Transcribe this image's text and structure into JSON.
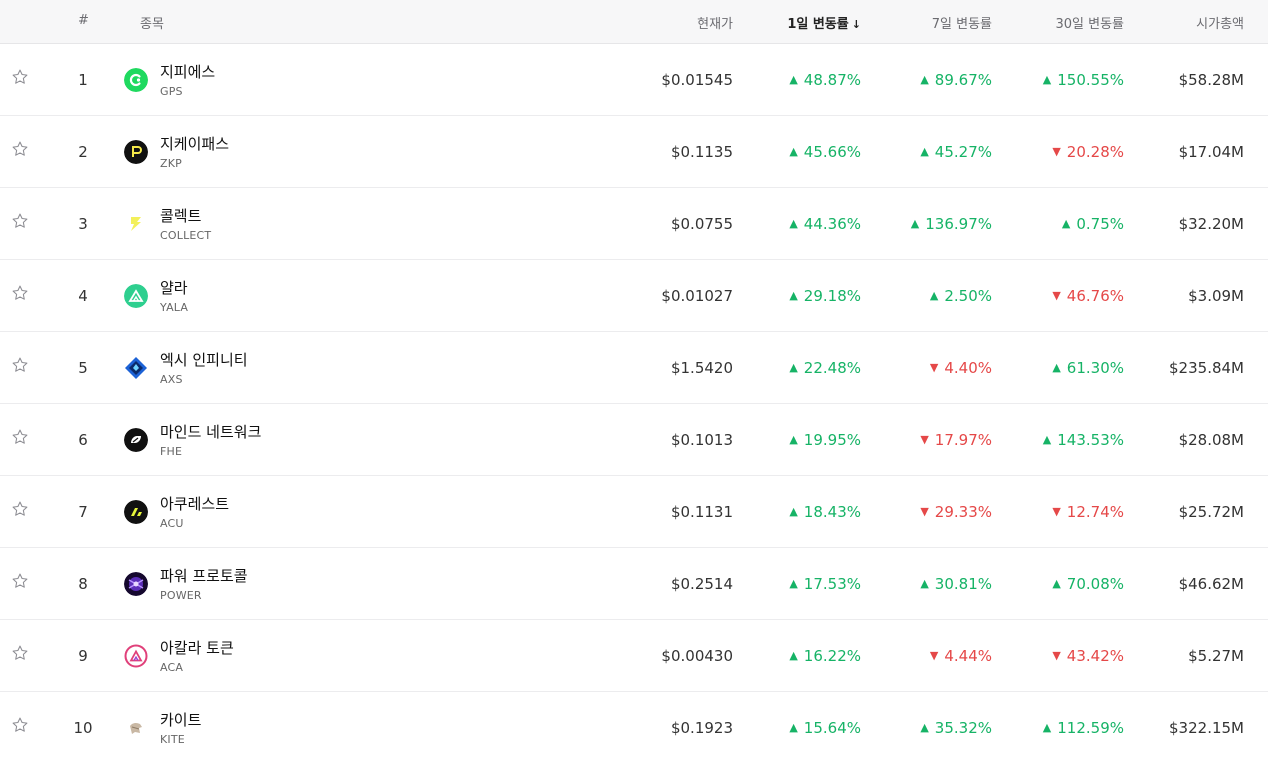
{
  "header": {
    "rank": "#",
    "name": "종목",
    "price": "현재가",
    "change_1d": "1일 변동률",
    "sort_indicator": "↓",
    "change_7d": "7일 변동률",
    "change_30d": "30일 변동률",
    "market_cap": "시가총액"
  },
  "colors": {
    "up": "#16b366",
    "down": "#e54848"
  },
  "rows": [
    {
      "rank": "1",
      "name": "지피에스",
      "symbol": "GPS",
      "price": "$0.01545",
      "d1": "48.87%",
      "d1_dir": "up",
      "d7": "89.67%",
      "d7_dir": "up",
      "d30": "150.55%",
      "d30_dir": "up",
      "cap": "$58.28M",
      "logo_icon": "gps-logo-icon",
      "logo_color": "#1fd95f"
    },
    {
      "rank": "2",
      "name": "지케이패스",
      "symbol": "ZKP",
      "price": "$0.1135",
      "d1": "45.66%",
      "d1_dir": "up",
      "d7": "45.27%",
      "d7_dir": "up",
      "d30": "20.28%",
      "d30_dir": "down",
      "cap": "$17.04M",
      "logo_icon": "zkp-logo-icon",
      "logo_color": "#111111"
    },
    {
      "rank": "3",
      "name": "콜렉트",
      "symbol": "COLLECT",
      "price": "$0.0755",
      "d1": "44.36%",
      "d1_dir": "up",
      "d7": "136.97%",
      "d7_dir": "up",
      "d30": "0.75%",
      "d30_dir": "up",
      "cap": "$32.20M",
      "logo_icon": "collect-logo-icon",
      "logo_color": "#f3f05a"
    },
    {
      "rank": "4",
      "name": "얄라",
      "symbol": "YALA",
      "price": "$0.01027",
      "d1": "29.18%",
      "d1_dir": "up",
      "d7": "2.50%",
      "d7_dir": "up",
      "d30": "46.76%",
      "d30_dir": "down",
      "cap": "$3.09M",
      "logo_icon": "yala-logo-icon",
      "logo_color": "#2ecf8f"
    },
    {
      "rank": "5",
      "name": "엑시 인피니티",
      "symbol": "AXS",
      "price": "$1.5420",
      "d1": "22.48%",
      "d1_dir": "up",
      "d7": "4.40%",
      "d7_dir": "down",
      "d30": "61.30%",
      "d30_dir": "up",
      "cap": "$235.84M",
      "logo_icon": "axs-logo-icon",
      "logo_color": "#1c62d6"
    },
    {
      "rank": "6",
      "name": "마인드 네트워크",
      "symbol": "FHE",
      "price": "$0.1013",
      "d1": "19.95%",
      "d1_dir": "up",
      "d7": "17.97%",
      "d7_dir": "down",
      "d30": "143.53%",
      "d30_dir": "up",
      "cap": "$28.08M",
      "logo_icon": "fhe-logo-icon",
      "logo_color": "#111111"
    },
    {
      "rank": "7",
      "name": "아쿠레스트",
      "symbol": "ACU",
      "price": "$0.1131",
      "d1": "18.43%",
      "d1_dir": "up",
      "d7": "29.33%",
      "d7_dir": "down",
      "d30": "12.74%",
      "d30_dir": "down",
      "cap": "$25.72M",
      "logo_icon": "acu-logo-icon",
      "logo_color": "#111111"
    },
    {
      "rank": "8",
      "name": "파워 프로토콜",
      "symbol": "POWER",
      "price": "$0.2514",
      "d1": "17.53%",
      "d1_dir": "up",
      "d7": "30.81%",
      "d7_dir": "up",
      "d30": "70.08%",
      "d30_dir": "up",
      "cap": "$46.62M",
      "logo_icon": "power-logo-icon",
      "logo_color": "#5b2db8"
    },
    {
      "rank": "9",
      "name": "아칼라 토큰",
      "symbol": "ACA",
      "price": "$0.00430",
      "d1": "16.22%",
      "d1_dir": "up",
      "d7": "4.44%",
      "d7_dir": "down",
      "d30": "43.42%",
      "d30_dir": "down",
      "cap": "$5.27M",
      "logo_icon": "aca-logo-icon",
      "logo_color": "#e0407a"
    },
    {
      "rank": "10",
      "name": "카이트",
      "symbol": "KITE",
      "price": "$0.1923",
      "d1": "15.64%",
      "d1_dir": "up",
      "d7": "35.32%",
      "d7_dir": "up",
      "d30": "112.59%",
      "d30_dir": "up",
      "cap": "$322.15M",
      "logo_icon": "kite-logo-icon",
      "logo_color": "#c9b8a4"
    }
  ]
}
